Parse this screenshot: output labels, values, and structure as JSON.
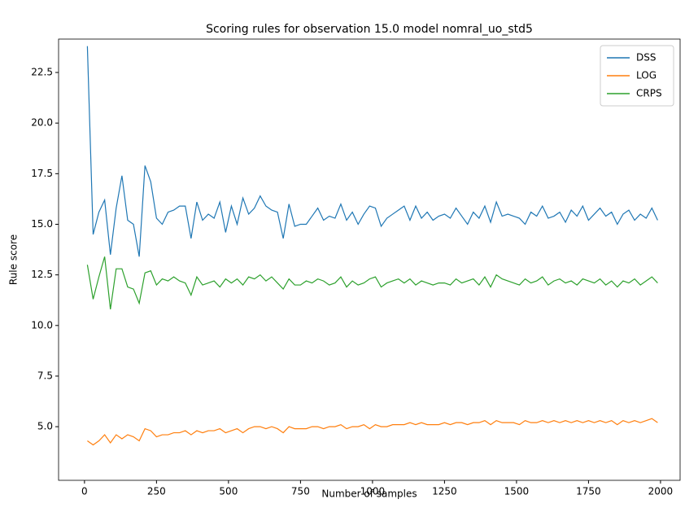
{
  "chart_data": {
    "type": "line",
    "title": "Scoring rules for observation 15.0 model nomral_uo_std5",
    "x_label": "Number of samples",
    "y_label": "Rule score",
    "x": [
      10,
      30,
      50,
      70,
      90,
      110,
      130,
      150,
      170,
      190,
      210,
      230,
      250,
      270,
      290,
      310,
      330,
      350,
      370,
      390,
      410,
      430,
      450,
      470,
      490,
      510,
      530,
      550,
      570,
      590,
      610,
      630,
      650,
      670,
      690,
      710,
      730,
      750,
      770,
      790,
      810,
      830,
      850,
      870,
      890,
      910,
      930,
      950,
      970,
      990,
      1010,
      1030,
      1050,
      1070,
      1090,
      1110,
      1130,
      1150,
      1170,
      1190,
      1210,
      1230,
      1250,
      1270,
      1290,
      1310,
      1330,
      1350,
      1370,
      1390,
      1410,
      1430,
      1450,
      1470,
      1490,
      1510,
      1530,
      1550,
      1570,
      1590,
      1610,
      1630,
      1650,
      1670,
      1690,
      1710,
      1730,
      1750,
      1770,
      1790,
      1810,
      1830,
      1850,
      1870,
      1890,
      1910,
      1930,
      1950,
      1970,
      1990
    ],
    "series": [
      {
        "name": "DSS",
        "color": "#1f77b4",
        "values": [
          23.8,
          14.5,
          15.6,
          16.2,
          13.5,
          15.8,
          17.4,
          15.2,
          15.0,
          13.4,
          17.9,
          17.1,
          15.3,
          15.0,
          15.6,
          15.7,
          15.9,
          15.9,
          14.3,
          16.1,
          15.2,
          15.5,
          15.3,
          16.1,
          14.6,
          15.9,
          15.0,
          16.3,
          15.5,
          15.8,
          16.4,
          15.9,
          15.7,
          15.6,
          14.3,
          16.0,
          14.9,
          15.0,
          15.0,
          15.4,
          15.8,
          15.2,
          15.4,
          15.3,
          16.0,
          15.2,
          15.6,
          15.0,
          15.5,
          15.9,
          15.8,
          14.9,
          15.3,
          15.5,
          15.7,
          15.9,
          15.2,
          15.9,
          15.3,
          15.6,
          15.2,
          15.4,
          15.5,
          15.3,
          15.8,
          15.4,
          15.0,
          15.6,
          15.3,
          15.9,
          15.1,
          16.1,
          15.4,
          15.5,
          15.4,
          15.3,
          15.0,
          15.6,
          15.4,
          15.9,
          15.3,
          15.4,
          15.6,
          15.1,
          15.7,
          15.4,
          15.9,
          15.2,
          15.5,
          15.8,
          15.4,
          15.6,
          15.0,
          15.5,
          15.7,
          15.2,
          15.5,
          15.3,
          15.8,
          15.2
        ]
      },
      {
        "name": "LOG",
        "color": "#ff7f0e",
        "values": [
          4.3,
          4.1,
          4.3,
          4.6,
          4.2,
          4.6,
          4.4,
          4.6,
          4.5,
          4.3,
          4.9,
          4.8,
          4.5,
          4.6,
          4.6,
          4.7,
          4.7,
          4.8,
          4.6,
          4.8,
          4.7,
          4.8,
          4.8,
          4.9,
          4.7,
          4.8,
          4.9,
          4.7,
          4.9,
          5.0,
          5.0,
          4.9,
          5.0,
          4.9,
          4.7,
          5.0,
          4.9,
          4.9,
          4.9,
          5.0,
          5.0,
          4.9,
          5.0,
          5.0,
          5.1,
          4.9,
          5.0,
          5.0,
          5.1,
          4.9,
          5.1,
          5.0,
          5.0,
          5.1,
          5.1,
          5.1,
          5.2,
          5.1,
          5.2,
          5.1,
          5.1,
          5.1,
          5.2,
          5.1,
          5.2,
          5.2,
          5.1,
          5.2,
          5.2,
          5.3,
          5.1,
          5.3,
          5.2,
          5.2,
          5.2,
          5.1,
          5.3,
          5.2,
          5.2,
          5.3,
          5.2,
          5.3,
          5.2,
          5.3,
          5.2,
          5.3,
          5.2,
          5.3,
          5.2,
          5.3,
          5.2,
          5.3,
          5.1,
          5.3,
          5.2,
          5.3,
          5.2,
          5.3,
          5.4,
          5.2
        ]
      },
      {
        "name": "CRPS",
        "color": "#2ca02c",
        "values": [
          13.0,
          11.3,
          12.4,
          13.4,
          10.8,
          12.8,
          12.8,
          11.9,
          11.8,
          11.1,
          12.6,
          12.7,
          12.0,
          12.3,
          12.2,
          12.4,
          12.2,
          12.1,
          11.5,
          12.4,
          12.0,
          12.1,
          12.2,
          11.9,
          12.3,
          12.1,
          12.3,
          12.0,
          12.4,
          12.3,
          12.5,
          12.2,
          12.4,
          12.1,
          11.8,
          12.3,
          12.0,
          12.0,
          12.2,
          12.1,
          12.3,
          12.2,
          12.0,
          12.1,
          12.4,
          11.9,
          12.2,
          12.0,
          12.1,
          12.3,
          12.4,
          11.9,
          12.1,
          12.2,
          12.3,
          12.1,
          12.3,
          12.0,
          12.2,
          12.1,
          12.0,
          12.1,
          12.1,
          12.0,
          12.3,
          12.1,
          12.2,
          12.3,
          12.0,
          12.4,
          11.9,
          12.5,
          12.3,
          12.2,
          12.1,
          12.0,
          12.3,
          12.1,
          12.2,
          12.4,
          12.0,
          12.2,
          12.3,
          12.1,
          12.2,
          12.0,
          12.3,
          12.2,
          12.1,
          12.3,
          12.0,
          12.2,
          11.9,
          12.2,
          12.1,
          12.3,
          12.0,
          12.2,
          12.4,
          12.1
        ]
      }
    ],
    "xlim": [
      -90,
      2068
    ],
    "ylim": [
      2.35,
      24.15
    ],
    "xticks": [
      0,
      250,
      500,
      750,
      1000,
      1250,
      1500,
      1750,
      2000
    ],
    "yticks": [
      {
        "value": 5,
        "label": "5.0"
      },
      7.5,
      {
        "value": 10,
        "label": "10.0"
      },
      12.5,
      {
        "value": 15,
        "label": "15.0"
      },
      17.5,
      {
        "value": 20,
        "label": "20.0"
      },
      22.5
    ],
    "grid": false,
    "legend": "upper right"
  }
}
